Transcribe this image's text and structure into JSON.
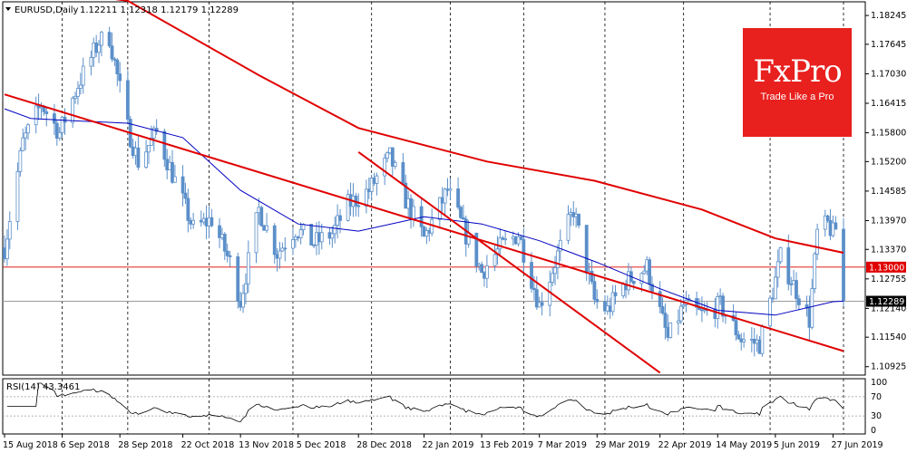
{
  "header": {
    "menu_arrow": "triangle-down-icon",
    "symbol": "EURUSD,Daily",
    "ohlc": "1.12211 1.12318 1.12179 1.12289"
  },
  "logo": {
    "name": "FxPro",
    "tagline": "Trade Like a Pro",
    "color": "#e8201e"
  },
  "rsi_label": "RSI(14) 43.3461",
  "chart_data": {
    "type": "candlestick",
    "symbol": "EURUSD",
    "timeframe": "Daily",
    "x_range": [
      "2018-08-15",
      "2019-07-01"
    ],
    "ylim": [
      1.1075,
      1.1853
    ],
    "y_ticks": [
      "1.18245",
      "1.17645",
      "1.17030",
      "1.16415",
      "1.15800",
      "1.15200",
      "1.14585",
      "1.13970",
      "1.13370",
      "1.12755",
      "1.12140",
      "1.11540",
      "1.10925"
    ],
    "y_tick_values": [
      1.18245,
      1.17645,
      1.1703,
      1.16415,
      1.158,
      1.152,
      1.14585,
      1.1397,
      1.1337,
      1.12755,
      1.1214,
      1.1154,
      1.10925
    ],
    "x_ticks": [
      "15 Aug 2018",
      "6 Sep 2018",
      "28 Sep 2018",
      "22 Oct 2018",
      "13 Nov 2018",
      "5 Dec 2018",
      "28 Dec 2018",
      "22 Jan 2019",
      "13 Feb 2019",
      "7 Mar 2019",
      "29 Mar 2019",
      "22 Apr 2019",
      "14 May 2019",
      "5 Jun 2019",
      "27 Jun 2019"
    ],
    "x_tick_dates": [
      "2018-08-15",
      "2018-09-06",
      "2018-09-28",
      "2018-10-22",
      "2018-11-13",
      "2018-12-05",
      "2018-12-28",
      "2019-01-22",
      "2019-02-13",
      "2019-03-07",
      "2019-03-29",
      "2019-04-22",
      "2019-05-14",
      "2019-06-05",
      "2019-06-27"
    ],
    "x_grid_dates": [
      "2018-09-06",
      "2018-10-01",
      "2018-11-01",
      "2018-12-03",
      "2019-01-02",
      "2019-02-01",
      "2019-03-01",
      "2019-04-01",
      "2019-05-01",
      "2019-06-03",
      "2019-07-01"
    ],
    "price_control_points": [
      [
        "2018-08-15",
        1.134
      ],
      [
        "2018-08-22",
        1.156
      ],
      [
        "2018-08-29",
        1.164
      ],
      [
        "2018-09-05",
        1.158
      ],
      [
        "2018-09-12",
        1.168
      ],
      [
        "2018-09-20",
        1.177
      ],
      [
        "2018-09-24",
        1.178
      ],
      [
        "2018-10-01",
        1.159
      ],
      [
        "2018-10-05",
        1.152
      ],
      [
        "2018-10-12",
        1.158
      ],
      [
        "2018-10-19",
        1.148
      ],
      [
        "2018-10-26",
        1.138
      ],
      [
        "2018-11-02",
        1.14
      ],
      [
        "2018-11-09",
        1.131
      ],
      [
        "2018-11-13",
        1.123
      ],
      [
        "2018-11-20",
        1.142
      ],
      [
        "2018-11-27",
        1.133
      ],
      [
        "2018-12-04",
        1.138
      ],
      [
        "2018-12-11",
        1.135
      ],
      [
        "2018-12-18",
        1.137
      ],
      [
        "2018-12-24",
        1.143
      ],
      [
        "2019-01-01",
        1.146
      ],
      [
        "2019-01-09",
        1.153
      ],
      [
        "2019-01-15",
        1.144
      ],
      [
        "2019-01-22",
        1.136
      ],
      [
        "2019-01-31",
        1.146
      ],
      [
        "2019-02-06",
        1.138
      ],
      [
        "2019-02-13",
        1.129
      ],
      [
        "2019-02-20",
        1.134
      ],
      [
        "2019-02-27",
        1.137
      ],
      [
        "2019-03-07",
        1.122
      ],
      [
        "2019-03-13",
        1.131
      ],
      [
        "2019-03-20",
        1.142
      ],
      [
        "2019-03-28",
        1.123
      ],
      [
        "2019-04-02",
        1.121
      ],
      [
        "2019-04-09",
        1.127
      ],
      [
        "2019-04-17",
        1.13
      ],
      [
        "2019-04-25",
        1.115
      ],
      [
        "2019-05-01",
        1.122
      ],
      [
        "2019-05-08",
        1.12
      ],
      [
        "2019-05-15",
        1.122
      ],
      [
        "2019-05-23",
        1.115
      ],
      [
        "2019-05-30",
        1.114
      ],
      [
        "2019-06-04",
        1.125
      ],
      [
        "2019-06-07",
        1.132
      ],
      [
        "2019-06-14",
        1.124
      ],
      [
        "2019-06-18",
        1.119
      ],
      [
        "2019-06-21",
        1.137
      ],
      [
        "2019-06-25",
        1.139
      ],
      [
        "2019-06-27",
        1.137
      ],
      [
        "2019-06-28",
        1.138
      ],
      [
        "2019-07-01",
        1.1229
      ]
    ],
    "overlays": [
      {
        "type": "ma_slow",
        "color": "#e00000",
        "points": [
          [
            "2018-08-15",
            1.189
          ],
          [
            "2018-10-01",
            1.1855
          ],
          [
            "2018-11-20",
            1.17
          ],
          [
            "2018-12-28",
            1.159
          ],
          [
            "2019-02-15",
            1.152
          ],
          [
            "2019-03-28",
            1.148
          ],
          [
            "2019-05-08",
            1.142
          ],
          [
            "2019-06-05",
            1.136
          ],
          [
            "2019-07-01",
            1.133
          ]
        ]
      },
      {
        "type": "ma_fast",
        "color": "#0000c0",
        "points": [
          [
            "2018-08-15",
            1.163
          ],
          [
            "2018-08-25",
            1.161
          ],
          [
            "2018-09-10",
            1.1605
          ],
          [
            "2018-10-01",
            1.16
          ],
          [
            "2018-10-22",
            1.157
          ],
          [
            "2018-11-13",
            1.146
          ],
          [
            "2018-12-05",
            1.139
          ],
          [
            "2018-12-28",
            1.1375
          ],
          [
            "2019-01-22",
            1.1405
          ],
          [
            "2019-02-13",
            1.139
          ],
          [
            "2019-03-07",
            1.1355
          ],
          [
            "2019-03-29",
            1.131
          ],
          [
            "2019-04-22",
            1.1255
          ],
          [
            "2019-05-14",
            1.121
          ],
          [
            "2019-06-05",
            1.12
          ],
          [
            "2019-06-27",
            1.1228
          ],
          [
            "2019-07-01",
            1.1229
          ]
        ]
      },
      {
        "type": "trendline",
        "color": "#e00000",
        "points": [
          [
            "2018-08-15",
            1.166
          ],
          [
            "2019-07-01",
            1.1125
          ]
        ]
      },
      {
        "type": "trendline",
        "color": "#e00000",
        "points": [
          [
            "2018-12-28",
            1.154
          ],
          [
            "2019-04-22",
            1.108
          ]
        ]
      }
    ],
    "horizontal_levels": [
      {
        "value": 1.13,
        "label": "1.13000",
        "color": "#e00000"
      },
      {
        "value": 1.12289,
        "label": "1.12289",
        "color": "#9a9a9a"
      }
    ],
    "candle_color": "#5b8fc9",
    "rsi": {
      "name": "RSI(14)",
      "last_value": 43.3461,
      "levels": [
        70,
        30
      ],
      "y_ticks": [
        "100",
        "70",
        "30",
        "0"
      ],
      "ylim": [
        0,
        100
      ],
      "color": "#000000"
    }
  }
}
